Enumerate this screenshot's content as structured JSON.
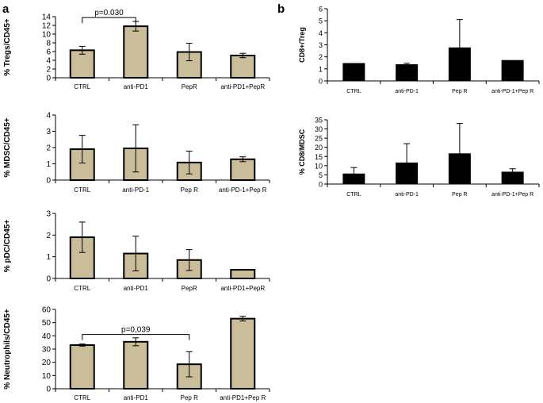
{
  "panel_labels": {
    "a": "a",
    "b": "b"
  },
  "style": {
    "bar_fill_a": "#c9bd9a",
    "bar_fill_b": "#000000",
    "bar_stroke": "#000000",
    "axis_color": "#000000"
  },
  "chart_data": [
    {
      "id": "tregs",
      "panel": "a",
      "type": "bar",
      "ylabel": "% Tregs/CD45+",
      "ylim": [
        0,
        14
      ],
      "yticks": [
        0,
        2,
        4,
        6,
        8,
        10,
        12,
        14
      ],
      "categories": [
        "CTRL",
        "anti-PD1",
        "PepR",
        "anti-PD1+PepR"
      ],
      "values": [
        6.3,
        11.8,
        5.9,
        5.1
      ],
      "errors": [
        0.9,
        1.1,
        2.0,
        0.5
      ],
      "annotations": [
        {
          "text": "p=0.030",
          "from": 0,
          "to": 1,
          "level": 13.8
        }
      ]
    },
    {
      "id": "mdsc",
      "panel": "a",
      "type": "bar",
      "ylabel": "% MDSC/CD45+",
      "ylim": [
        0,
        4
      ],
      "yticks": [
        0,
        1,
        2,
        3,
        4
      ],
      "categories": [
        "CTRL",
        "anti-PD-1",
        "Pep R",
        "anti-PD-1+Pep R"
      ],
      "values": [
        1.9,
        1.95,
        1.08,
        1.28
      ],
      "errors": [
        0.85,
        1.45,
        0.7,
        0.15
      ],
      "annotations": []
    },
    {
      "id": "pdc",
      "panel": "a",
      "type": "bar",
      "ylabel": "% pDC/CD45+",
      "ylim": [
        0,
        3
      ],
      "yticks": [
        0,
        1,
        2,
        3
      ],
      "categories": [
        "CTRL",
        "anti-PD1",
        "PepR",
        "anti-PD1+PepR"
      ],
      "values": [
        1.9,
        1.15,
        0.85,
        0.4
      ],
      "errors": [
        0.7,
        0.8,
        0.48,
        0
      ],
      "annotations": []
    },
    {
      "id": "neutrophils",
      "panel": "a",
      "type": "bar",
      "ylabel": "% Neutrophils/CD45+",
      "ylim": [
        0,
        60
      ],
      "yticks": [
        0,
        10,
        20,
        30,
        40,
        50,
        60
      ],
      "categories": [
        "CTRL",
        "anti-PD1",
        "Pep R",
        "anti-PD1+Pep R"
      ],
      "values": [
        33,
        35.5,
        18.5,
        53
      ],
      "errors": [
        0.8,
        3,
        9.5,
        1.8
      ],
      "annotations": [
        {
          "text": "p=0,039",
          "from": 0,
          "to": 2,
          "level": 41
        }
      ]
    },
    {
      "id": "cd8_treg",
      "panel": "b",
      "type": "bar",
      "ylabel": "CD8+/Treg",
      "ylim": [
        0,
        6
      ],
      "yticks": [
        0,
        1,
        2,
        3,
        4,
        5,
        6
      ],
      "categories": [
        "CTRL",
        "anti-PD-1",
        "Pep R",
        "anti-PD-1+Pep R"
      ],
      "values": [
        1.45,
        1.35,
        2.75,
        1.7
      ],
      "errors": [
        0,
        0.12,
        2.35,
        0
      ],
      "annotations": []
    },
    {
      "id": "cd8_mdsc",
      "panel": "b",
      "type": "bar",
      "ylabel": "% CD8/MDSC",
      "ylim": [
        0,
        35
      ],
      "yticks": [
        0,
        5,
        10,
        15,
        20,
        25,
        30,
        35
      ],
      "categories": [
        "CTRL",
        "anti-PD-1",
        "Pep R",
        "anti-PD-1+Pep R"
      ],
      "values": [
        5.5,
        11.5,
        16.5,
        6.5
      ],
      "errors": [
        3.5,
        10.5,
        16.5,
        1.8
      ],
      "annotations": []
    }
  ]
}
